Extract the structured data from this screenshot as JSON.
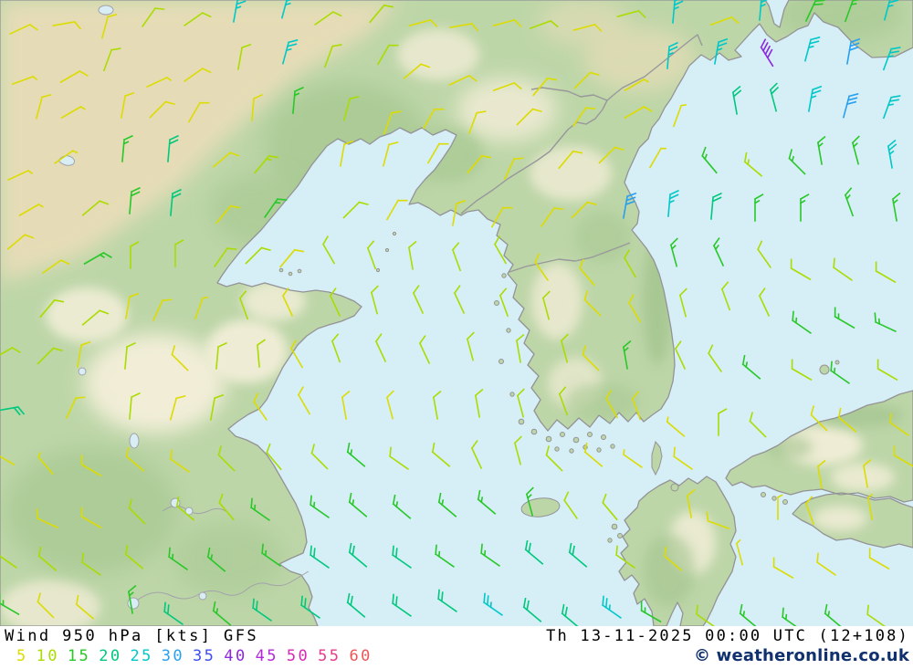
{
  "footer": {
    "product": "Wind 950 hPa [kts] GFS",
    "datetime": "Th 13-11-2025 00:00 UTC (12+108)",
    "copyright": "© weatheronline.co.uk",
    "scale": [
      {
        "label": "5",
        "color": "#dcdc00"
      },
      {
        "label": "10",
        "color": "#aadc00"
      },
      {
        "label": "15",
        "color": "#28c828"
      },
      {
        "label": "20",
        "color": "#00c87d"
      },
      {
        "label": "25",
        "color": "#00c8c8"
      },
      {
        "label": "30",
        "color": "#28a0f0"
      },
      {
        "label": "35",
        "color": "#3c50f0"
      },
      {
        "label": "40",
        "color": "#8c28e0"
      },
      {
        "label": "45",
        "color": "#b428dc"
      },
      {
        "label": "50",
        "color": "#d828b4"
      },
      {
        "label": "55",
        "color": "#e63c8a"
      },
      {
        "label": "60",
        "color": "#f05555"
      }
    ]
  },
  "map": {
    "sea_color": "#d6eef6",
    "land_color": "#bdd6a8",
    "coast_color": "#939396",
    "barb_unit": "kts",
    "barbs": [
      [
        22,
        32,
        65,
        8
      ],
      [
        70,
        26,
        80,
        8
      ],
      [
        115,
        30,
        15,
        8
      ],
      [
        163,
        19,
        35,
        12
      ],
      [
        212,
        21,
        55,
        12
      ],
      [
        258,
        12,
        10,
        25
      ],
      [
        312,
        8,
        15,
        25
      ],
      [
        355,
        20,
        55,
        12
      ],
      [
        413,
        15,
        40,
        12
      ],
      [
        460,
        25,
        75,
        8
      ],
      [
        505,
        28,
        80,
        8
      ],
      [
        552,
        25,
        75,
        8
      ],
      [
        592,
        27,
        70,
        12
      ],
      [
        640,
        30,
        75,
        8
      ],
      [
        688,
        15,
        75,
        12
      ],
      [
        738,
        13,
        5,
        25
      ],
      [
        790,
        23,
        70,
        8
      ],
      [
        833,
        10,
        5,
        25
      ],
      [
        888,
        12,
        25,
        18
      ],
      [
        930,
        12,
        20,
        15
      ],
      [
        972,
        10,
        15,
        25
      ],
      [
        25,
        88,
        70,
        5
      ],
      [
        77,
        84,
        60,
        8
      ],
      [
        118,
        66,
        20,
        12
      ],
      [
        172,
        90,
        65,
        5
      ],
      [
        212,
        82,
        55,
        8
      ],
      [
        263,
        64,
        10,
        12
      ],
      [
        313,
        58,
        15,
        25
      ],
      [
        360,
        62,
        20,
        12
      ],
      [
        420,
        60,
        30,
        12
      ],
      [
        452,
        78,
        50,
        8
      ],
      [
        503,
        88,
        65,
        8
      ],
      [
        552,
        95,
        70,
        8
      ],
      [
        592,
        95,
        40,
        8
      ],
      [
        638,
        88,
        45,
        8
      ],
      [
        695,
        93,
        60,
        5
      ],
      [
        732,
        63,
        5,
        25
      ],
      [
        785,
        58,
        10,
        25
      ],
      [
        840,
        62,
        -32,
        40
      ],
      [
        885,
        55,
        15,
        25
      ],
      [
        930,
        58,
        10,
        30
      ],
      [
        972,
        65,
        20,
        25
      ],
      [
        43,
        118,
        15,
        8
      ],
      [
        78,
        123,
        60,
        5
      ],
      [
        135,
        117,
        10,
        8
      ],
      [
        173,
        120,
        45,
        8
      ],
      [
        213,
        123,
        30,
        8
      ],
      [
        277,
        120,
        5,
        8
      ],
      [
        322,
        112,
        5,
        17
      ],
      [
        380,
        120,
        15,
        12
      ],
      [
        425,
        135,
        20,
        8
      ],
      [
        470,
        130,
        30,
        8
      ],
      [
        518,
        135,
        20,
        8
      ],
      [
        575,
        128,
        45,
        8
      ],
      [
        635,
        128,
        35,
        8
      ],
      [
        695,
        123,
        60,
        8
      ],
      [
        742,
        127,
        20,
        5
      ],
      [
        805,
        113,
        -10,
        20
      ],
      [
        847,
        110,
        -15,
        20
      ],
      [
        888,
        110,
        10,
        25
      ],
      [
        927,
        117,
        15,
        30
      ],
      [
        972,
        118,
        20,
        25
      ],
      [
        20,
        192,
        65,
        5
      ],
      [
        70,
        172,
        55,
        5
      ],
      [
        135,
        165,
        5,
        17
      ],
      [
        185,
        165,
        5,
        20
      ],
      [
        243,
        175,
        50,
        8
      ],
      [
        287,
        180,
        40,
        13
      ],
      [
        375,
        170,
        10,
        8
      ],
      [
        423,
        170,
        15,
        8
      ],
      [
        475,
        168,
        30,
        8
      ],
      [
        520,
        180,
        40,
        8
      ],
      [
        558,
        185,
        25,
        8
      ],
      [
        620,
        175,
        40,
        8
      ],
      [
        665,
        170,
        45,
        8
      ],
      [
        718,
        173,
        30,
        5
      ],
      [
        777,
        180,
        -40,
        15
      ],
      [
        825,
        185,
        -50,
        13
      ],
      [
        873,
        182,
        -45,
        15
      ],
      [
        898,
        168,
        -10,
        17
      ],
      [
        937,
        168,
        -15,
        15
      ],
      [
        975,
        172,
        -10,
        25
      ],
      [
        32,
        230,
        60,
        5
      ],
      [
        100,
        228,
        50,
        12
      ],
      [
        143,
        222,
        5,
        18
      ],
      [
        188,
        224,
        5,
        20
      ],
      [
        245,
        235,
        40,
        8
      ],
      [
        297,
        228,
        35,
        15
      ],
      [
        385,
        230,
        45,
        12
      ],
      [
        430,
        230,
        30,
        8
      ],
      [
        498,
        235,
        10,
        8
      ],
      [
        545,
        238,
        30,
        8
      ],
      [
        600,
        238,
        35,
        8
      ],
      [
        635,
        230,
        45,
        8
      ],
      [
        685,
        227,
        10,
        30
      ],
      [
        733,
        225,
        5,
        25
      ],
      [
        780,
        228,
        5,
        20
      ],
      [
        827,
        230,
        0,
        15
      ],
      [
        877,
        230,
        0,
        15
      ],
      [
        930,
        225,
        -20,
        17
      ],
      [
        980,
        230,
        -10,
        15
      ],
      [
        18,
        265,
        50,
        8
      ],
      [
        57,
        292,
        55,
        8
      ],
      [
        103,
        283,
        60,
        15
      ],
      [
        143,
        282,
        0,
        12
      ],
      [
        192,
        280,
        0,
        12
      ],
      [
        242,
        282,
        35,
        12
      ],
      [
        278,
        280,
        45,
        12
      ],
      [
        315,
        283,
        40,
        8
      ],
      [
        360,
        278,
        -30,
        10
      ],
      [
        407,
        283,
        -20,
        10
      ],
      [
        450,
        283,
        -10,
        10
      ],
      [
        500,
        285,
        -20,
        10
      ],
      [
        548,
        278,
        -30,
        10
      ],
      [
        593,
        297,
        -35,
        8
      ],
      [
        643,
        303,
        -40,
        8
      ],
      [
        690,
        293,
        -30,
        10
      ],
      [
        738,
        280,
        -15,
        15
      ],
      [
        787,
        280,
        -25,
        15
      ],
      [
        837,
        283,
        -35,
        12
      ],
      [
        877,
        300,
        -60,
        12
      ],
      [
        923,
        300,
        -55,
        12
      ],
      [
        970,
        303,
        -60,
        12
      ],
      [
        52,
        338,
        40,
        10
      ],
      [
        100,
        348,
        50,
        12
      ],
      [
        140,
        337,
        10,
        8
      ],
      [
        173,
        340,
        25,
        8
      ],
      [
        218,
        338,
        20,
        5
      ],
      [
        267,
        338,
        -20,
        10
      ],
      [
        315,
        335,
        -25,
        8
      ],
      [
        367,
        335,
        -25,
        10
      ],
      [
        410,
        332,
        -15,
        10
      ],
      [
        458,
        332,
        -25,
        10
      ],
      [
        503,
        332,
        -25,
        10
      ],
      [
        552,
        335,
        -20,
        10
      ],
      [
        598,
        338,
        -15,
        10
      ],
      [
        649,
        337,
        -45,
        8
      ],
      [
        695,
        342,
        -30,
        8
      ],
      [
        748,
        335,
        -15,
        12
      ],
      [
        795,
        328,
        -20,
        12
      ],
      [
        837,
        335,
        -25,
        10
      ],
      [
        878,
        358,
        -55,
        17
      ],
      [
        925,
        353,
        -60,
        17
      ],
      [
        970,
        358,
        -65,
        17
      ],
      [
        3,
        387,
        60,
        10
      ],
      [
        50,
        390,
        45,
        12
      ],
      [
        87,
        390,
        10,
        8
      ],
      [
        138,
        392,
        5,
        10
      ],
      [
        197,
        397,
        -45,
        8
      ],
      [
        238,
        392,
        5,
        12
      ],
      [
        283,
        390,
        -5,
        10
      ],
      [
        325,
        392,
        -30,
        8
      ],
      [
        368,
        385,
        -20,
        10
      ],
      [
        417,
        385,
        -25,
        10
      ],
      [
        465,
        387,
        -25,
        10
      ],
      [
        515,
        383,
        -15,
        10
      ],
      [
        568,
        385,
        -10,
        10
      ],
      [
        618,
        385,
        -15,
        12
      ],
      [
        647,
        397,
        -45,
        8
      ],
      [
        685,
        392,
        -10,
        15
      ],
      [
        745,
        393,
        -25,
        10
      ],
      [
        783,
        397,
        -35,
        10
      ],
      [
        823,
        407,
        -50,
        17
      ],
      [
        878,
        410,
        -60,
        12
      ],
      [
        920,
        413,
        -55,
        15
      ],
      [
        972,
        410,
        -60,
        12
      ],
      [
        8,
        448,
        80,
        20
      ],
      [
        78,
        447,
        25,
        8
      ],
      [
        143,
        447,
        5,
        10
      ],
      [
        190,
        448,
        15,
        8
      ],
      [
        233,
        448,
        10,
        10
      ],
      [
        285,
        450,
        -35,
        8
      ],
      [
        333,
        443,
        -30,
        8
      ],
      [
        377,
        447,
        -10,
        8
      ],
      [
        427,
        447,
        -15,
        8
      ],
      [
        477,
        447,
        -10,
        10
      ],
      [
        523,
        445,
        -10,
        10
      ],
      [
        570,
        445,
        -15,
        10
      ],
      [
        617,
        443,
        -20,
        12
      ],
      [
        670,
        447,
        -30,
        8
      ],
      [
        697,
        448,
        -20,
        8
      ],
      [
        740,
        470,
        -50,
        5
      ],
      [
        787,
        465,
        0,
        12
      ],
      [
        830,
        470,
        -45,
        12
      ],
      [
        897,
        463,
        -45,
        8
      ],
      [
        928,
        465,
        -50,
        8
      ],
      [
        985,
        470,
        -55,
        8
      ],
      [
        5,
        503,
        -60,
        8
      ],
      [
        50,
        510,
        -40,
        5
      ],
      [
        100,
        515,
        -60,
        8
      ],
      [
        148,
        508,
        -50,
        8
      ],
      [
        197,
        510,
        -55,
        8
      ],
      [
        248,
        507,
        -45,
        10
      ],
      [
        300,
        505,
        -40,
        12
      ],
      [
        350,
        505,
        -45,
        12
      ],
      [
        390,
        503,
        -50,
        15
      ],
      [
        437,
        507,
        -55,
        10
      ],
      [
        483,
        503,
        -50,
        10
      ],
      [
        522,
        502,
        -25,
        10
      ],
      [
        567,
        497,
        -15,
        12
      ],
      [
        607,
        507,
        -45,
        10
      ],
      [
        650,
        503,
        -50,
        8
      ],
      [
        693,
        505,
        -55,
        5
      ],
      [
        748,
        507,
        -55,
        8
      ],
      [
        898,
        523,
        -10,
        8
      ],
      [
        948,
        522,
        -10,
        8
      ],
      [
        990,
        505,
        -60,
        8
      ],
      [
        52,
        573,
        -65,
        8
      ],
      [
        100,
        572,
        -60,
        8
      ],
      [
        150,
        565,
        -45,
        10
      ],
      [
        203,
        562,
        -50,
        10
      ],
      [
        248,
        560,
        -40,
        12
      ],
      [
        285,
        563,
        -55,
        15
      ],
      [
        350,
        560,
        -55,
        15
      ],
      [
        392,
        558,
        -50,
        15
      ],
      [
        440,
        560,
        -50,
        15
      ],
      [
        490,
        558,
        -50,
        15
      ],
      [
        533,
        555,
        -50,
        15
      ],
      [
        580,
        553,
        -15,
        17
      ],
      [
        625,
        558,
        -35,
        10
      ],
      [
        668,
        560,
        -40,
        10
      ],
      [
        755,
        555,
        -10,
        8
      ],
      [
        787,
        575,
        -70,
        8
      ],
      [
        852,
        557,
        0,
        5
      ],
      [
        887,
        563,
        -20,
        8
      ],
      [
        953,
        557,
        -10,
        5
      ],
      [
        8,
        615,
        -55,
        10
      ],
      [
        52,
        617,
        -50,
        10
      ],
      [
        100,
        623,
        -55,
        10
      ],
      [
        147,
        615,
        -50,
        10
      ],
      [
        195,
        617,
        -55,
        15
      ],
      [
        237,
        618,
        -50,
        15
      ],
      [
        297,
        613,
        -55,
        15
      ],
      [
        350,
        615,
        -55,
        20
      ],
      [
        392,
        613,
        -50,
        20
      ],
      [
        440,
        615,
        -55,
        20
      ],
      [
        487,
        614,
        -55,
        17
      ],
      [
        537,
        613,
        -55,
        17
      ],
      [
        585,
        610,
        -50,
        20
      ],
      [
        633,
        613,
        -50,
        20
      ],
      [
        685,
        615,
        -55,
        12
      ],
      [
        737,
        617,
        -50,
        8
      ],
      [
        810,
        607,
        -15,
        5
      ],
      [
        858,
        627,
        -60,
        8
      ],
      [
        905,
        623,
        -55,
        8
      ],
      [
        963,
        617,
        -60,
        8
      ],
      [
        10,
        667,
        -60,
        15
      ],
      [
        50,
        668,
        -45,
        8
      ],
      [
        93,
        670,
        -50,
        8
      ],
      [
        143,
        660,
        -10,
        17
      ],
      [
        190,
        677,
        -55,
        20
      ],
      [
        243,
        677,
        -50,
        17
      ],
      [
        287,
        673,
        -55,
        20
      ],
      [
        340,
        670,
        -55,
        20
      ],
      [
        390,
        668,
        -50,
        22
      ],
      [
        440,
        668,
        -55,
        22
      ],
      [
        490,
        663,
        -55,
        22
      ],
      [
        540,
        667,
        -55,
        25
      ],
      [
        583,
        673,
        -50,
        22
      ],
      [
        625,
        680,
        -50,
        20
      ],
      [
        670,
        670,
        -55,
        25
      ],
      [
        713,
        675,
        -60,
        17
      ],
      [
        773,
        680,
        -55,
        10
      ],
      [
        820,
        680,
        -50,
        15
      ],
      [
        867,
        683,
        -55,
        15
      ],
      [
        913,
        680,
        -50,
        15
      ],
      [
        960,
        680,
        -55,
        12
      ]
    ]
  }
}
